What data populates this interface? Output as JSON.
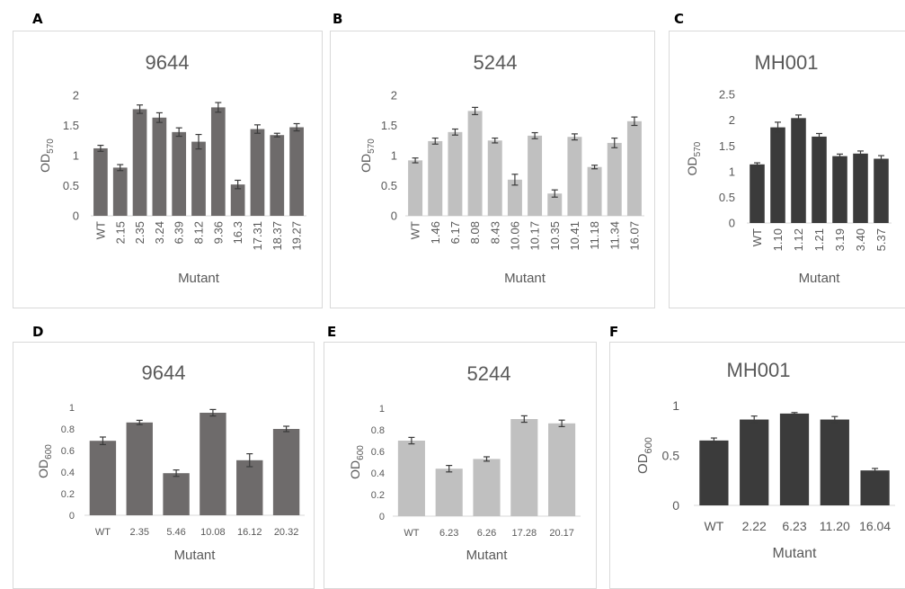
{
  "panels": [
    {
      "letter": "A"
    },
    {
      "letter": "B"
    },
    {
      "letter": "C"
    },
    {
      "letter": "D"
    },
    {
      "letter": "E"
    },
    {
      "letter": "F"
    }
  ],
  "chart_data": [
    {
      "type": "bar",
      "title": "9644",
      "xlabel": "Mutant",
      "ylabel": "OD",
      "ylabel_sub": "570",
      "ylim": [
        0,
        2
      ],
      "yticks": [
        "0",
        "0.5",
        "1",
        "1.5",
        "2"
      ],
      "categories": [
        "WT",
        "2.15",
        "2.35",
        "3.24",
        "6.39",
        "8.12",
        "9.36",
        "16.3",
        "17.31",
        "18.37",
        "19.27"
      ],
      "values": [
        1.12,
        0.8,
        1.77,
        1.63,
        1.39,
        1.23,
        1.8,
        0.52,
        1.44,
        1.34,
        1.47
      ],
      "errors": [
        0.05,
        0.05,
        0.07,
        0.08,
        0.07,
        0.12,
        0.08,
        0.07,
        0.07,
        0.03,
        0.06
      ],
      "color": "#6e6b6b",
      "tick_rotation": "vertical",
      "grid": false
    },
    {
      "type": "bar",
      "title": "5244",
      "xlabel": "Mutant",
      "ylabel": "OD",
      "ylabel_sub": "570",
      "ylim": [
        0,
        2
      ],
      "yticks": [
        "0",
        "0.5",
        "1",
        "1.5",
        "2"
      ],
      "categories": [
        "WT",
        "1.46",
        "6.17",
        "8.08",
        "8.43",
        "10.06",
        "10.17",
        "10.35",
        "10.41",
        "11.18",
        "11.34",
        "16.07"
      ],
      "values": [
        0.92,
        1.24,
        1.39,
        1.74,
        1.25,
        0.6,
        1.33,
        0.37,
        1.31,
        0.81,
        1.21,
        1.57
      ],
      "errors": [
        0.04,
        0.05,
        0.05,
        0.06,
        0.04,
        0.09,
        0.05,
        0.06,
        0.05,
        0.03,
        0.08,
        0.07
      ],
      "color": "#c0c0c0",
      "tick_rotation": "vertical",
      "grid": false
    },
    {
      "type": "bar",
      "title": "MH001",
      "xlabel": "Mutant",
      "ylabel": "OD",
      "ylabel_sub": "570",
      "ylim": [
        0,
        2.5
      ],
      "yticks": [
        "0",
        "0.5",
        "1",
        "1.5",
        "2",
        "2.5"
      ],
      "categories": [
        "WT",
        "1.10",
        "1.12",
        "1.21",
        "3.19",
        "3.40",
        "5.37"
      ],
      "values": [
        1.14,
        1.86,
        2.04,
        1.68,
        1.3,
        1.35,
        1.25
      ],
      "errors": [
        0.03,
        0.1,
        0.06,
        0.06,
        0.04,
        0.05,
        0.06
      ],
      "color": "#3b3b3b",
      "tick_rotation": "vertical",
      "grid": false
    },
    {
      "type": "bar",
      "title": "9644",
      "xlabel": "Mutant",
      "ylabel": "OD",
      "ylabel_sub": "600",
      "ylim": [
        0,
        1
      ],
      "yticks": [
        "0",
        "0.2",
        "0.4",
        "0.6",
        "0.8",
        "1"
      ],
      "categories": [
        "WT",
        "2.35",
        "5.46",
        "10.08",
        "16.12",
        "20.32"
      ],
      "values": [
        0.69,
        0.86,
        0.39,
        0.95,
        0.51,
        0.8
      ],
      "errors": [
        0.035,
        0.02,
        0.03,
        0.03,
        0.06,
        0.025
      ],
      "color": "#6e6b6b",
      "tick_rotation": "horizontal",
      "grid": false
    },
    {
      "type": "bar",
      "title": "5244",
      "xlabel": "Mutant",
      "ylabel": "OD",
      "ylabel_sub": "600",
      "ylim": [
        0,
        1
      ],
      "yticks": [
        "0",
        "0.2",
        "0.4",
        "0.6",
        "0.8",
        "1"
      ],
      "categories": [
        "WT",
        "6.23",
        "6.26",
        "17.28",
        "20.17"
      ],
      "values": [
        0.7,
        0.44,
        0.53,
        0.9,
        0.86
      ],
      "errors": [
        0.03,
        0.03,
        0.02,
        0.03,
        0.03
      ],
      "color": "#c0c0c0",
      "tick_rotation": "horizontal",
      "grid": false
    },
    {
      "type": "bar",
      "title": "MH001",
      "xlabel": "Mutant",
      "ylabel": "OD",
      "ylabel_sub": "600",
      "ylim": [
        0,
        1
      ],
      "yticks": [
        "0",
        "0.5",
        "1"
      ],
      "categories": [
        "WT",
        "2.22",
        "6.23",
        "11.20",
        "16.04"
      ],
      "values": [
        0.65,
        0.86,
        0.92,
        0.86,
        0.35
      ],
      "errors": [
        0.025,
        0.035,
        0.01,
        0.03,
        0.02
      ],
      "color": "#3b3b3b",
      "tick_rotation": "horizontal",
      "grid": false
    }
  ]
}
